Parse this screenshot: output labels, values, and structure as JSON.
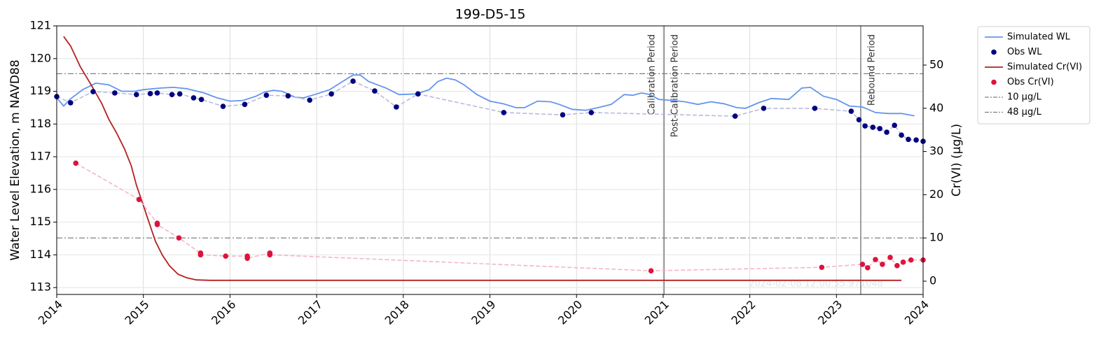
{
  "chart_data": {
    "type": "line",
    "title": "199-D5-15",
    "ylabel": "Water Level Elevation, m NAVD88",
    "y2label": "Cr(VI) (µg/L)",
    "xlim": [
      2014,
      2024
    ],
    "xticks": [
      2014,
      2015,
      2016,
      2017,
      2018,
      2019,
      2020,
      2021,
      2022,
      2023,
      2024
    ],
    "ylim": [
      112.79,
      121
    ],
    "yticks": [
      113,
      114,
      115,
      116,
      117,
      118,
      119,
      120,
      121
    ],
    "y2lim": [
      -3.07,
      59.06
    ],
    "y2ticks": [
      0,
      10,
      20,
      30,
      40,
      50
    ],
    "grid": true,
    "legend": "outside-right",
    "watermark": "2024-02-08 12:00:55.971048",
    "series": [
      {
        "name": "Simulated WL",
        "style": "line",
        "color": "#6495ed",
        "x": [
          2014.0,
          2014.08,
          2014.15,
          2014.3,
          2014.45,
          2014.6,
          2014.75,
          2014.9,
          2015.0,
          2015.2,
          2015.35,
          2015.5,
          2015.7,
          2015.85,
          2016.0,
          2016.15,
          2016.3,
          2016.4,
          2016.5,
          2016.6,
          2016.75,
          2016.85,
          2017.0,
          2017.15,
          2017.3,
          2017.42,
          2017.5,
          2017.6,
          2017.8,
          2017.95,
          2018.15,
          2018.3,
          2018.4,
          2018.5,
          2018.6,
          2018.7,
          2018.85,
          2019.0,
          2019.15,
          2019.3,
          2019.4,
          2019.55,
          2019.7,
          2019.8,
          2019.95,
          2020.1,
          2020.25,
          2020.4,
          2020.55,
          2020.65,
          2020.75,
          2020.85,
          2020.95,
          2021.1,
          2021.25,
          2021.4,
          2021.55,
          2021.7,
          2021.85,
          2021.95,
          2022.1,
          2022.25,
          2022.45,
          2022.6,
          2022.7,
          2022.85,
          2023.0,
          2023.15,
          2023.3,
          2023.45,
          2023.6,
          2023.75,
          2023.9
        ],
        "values": [
          118.8,
          118.55,
          118.75,
          119.05,
          119.25,
          119.2,
          119.0,
          119.0,
          119.05,
          119.1,
          119.12,
          119.08,
          118.95,
          118.8,
          118.7,
          118.72,
          118.85,
          118.98,
          119.03,
          119.0,
          118.82,
          118.8,
          118.92,
          119.05,
          119.3,
          119.5,
          119.5,
          119.3,
          119.1,
          118.9,
          118.92,
          119.05,
          119.3,
          119.4,
          119.35,
          119.2,
          118.9,
          118.7,
          118.62,
          118.5,
          118.5,
          118.7,
          118.68,
          118.6,
          118.45,
          118.42,
          118.5,
          118.6,
          118.9,
          118.88,
          118.95,
          118.9,
          118.75,
          118.72,
          118.68,
          118.6,
          118.68,
          118.62,
          118.5,
          118.48,
          118.65,
          118.78,
          118.75,
          119.1,
          119.12,
          118.85,
          118.75,
          118.55,
          118.52,
          118.35,
          118.32,
          118.32,
          118.25
        ]
      },
      {
        "name": "Obs WL",
        "style": "scatter",
        "color": "#000080",
        "line_color": "#b9b9e0",
        "x": [
          2014.0,
          2014.16,
          2014.42,
          2014.67,
          2014.92,
          2015.08,
          2015.16,
          2015.33,
          2015.42,
          2015.58,
          2015.67,
          2015.92,
          2016.17,
          2016.42,
          2016.67,
          2016.92,
          2017.17,
          2017.42,
          2017.67,
          2017.92,
          2018.17,
          2019.16,
          2019.84,
          2020.17,
          2021.83,
          2022.16,
          2022.75,
          2023.17,
          2023.26,
          2023.33,
          2023.42,
          2023.5,
          2023.58,
          2023.67,
          2023.75,
          2023.83,
          2023.92,
          2024.0
        ],
        "values": [
          118.84,
          118.65,
          118.99,
          118.95,
          118.9,
          118.93,
          118.95,
          118.9,
          118.92,
          118.8,
          118.75,
          118.54,
          118.6,
          118.88,
          118.86,
          118.73,
          118.92,
          119.31,
          119.01,
          118.52,
          118.92,
          118.35,
          118.28,
          118.35,
          118.24,
          118.48,
          118.48,
          118.39,
          118.13,
          117.94,
          117.9,
          117.86,
          117.75,
          117.96,
          117.66,
          117.53,
          117.51,
          117.47
        ]
      },
      {
        "name": "Simulated Cr(VI)",
        "style": "line",
        "axis": "y2",
        "color": "#b22222",
        "x": [
          2014.08,
          2014.16,
          2014.27,
          2014.4,
          2014.52,
          2014.6,
          2014.69,
          2014.78,
          2014.86,
          2014.92,
          2014.99,
          2015.07,
          2015.14,
          2015.22,
          2015.3,
          2015.4,
          2015.5,
          2015.61,
          2015.77,
          2016.17,
          2023.75
        ],
        "values": [
          56.6,
          54.4,
          49.7,
          45.3,
          41.1,
          37.5,
          34.3,
          30.7,
          26.7,
          22.2,
          18.1,
          13.3,
          9.2,
          6.0,
          3.6,
          1.6,
          0.8,
          0.3,
          0.2,
          0.2,
          0.2
        ]
      },
      {
        "name": "Obs Cr(VI)",
        "style": "scatter",
        "axis": "y2",
        "color": "#dc143c",
        "line_color": "#f4b6c8",
        "x": [
          2014.22,
          2014.95,
          2015.16,
          2015.16,
          2015.41,
          2015.66,
          2015.66,
          2015.95,
          2016.2,
          2016.2,
          2016.46,
          2016.46,
          2020.86,
          2022.83,
          2023.3,
          2023.36,
          2023.45,
          2023.53,
          2023.62,
          2023.7,
          2023.77,
          2023.86,
          2024.0
        ],
        "values": [
          27.3,
          18.9,
          13.4,
          13.1,
          10.0,
          6.5,
          6.1,
          5.8,
          5.8,
          5.3,
          6.5,
          6.1,
          2.4,
          3.2,
          3.9,
          3.1,
          5.0,
          3.9,
          5.5,
          3.6,
          4.4,
          4.9,
          4.9
        ]
      }
    ],
    "hlines": [
      {
        "name": "10 µg/L",
        "value": 10,
        "axis": "y2",
        "color": "#808080"
      },
      {
        "name": "48 µg/L",
        "value": 48,
        "axis": "y2",
        "color": "#808080"
      }
    ],
    "vlines": [
      {
        "x": 2021.01,
        "left": "Calibration Period",
        "right": "Post-Calibration Period",
        "color": "#808080"
      },
      {
        "x": 2023.28,
        "right": "Rebound Period",
        "color": "#808080"
      }
    ]
  }
}
